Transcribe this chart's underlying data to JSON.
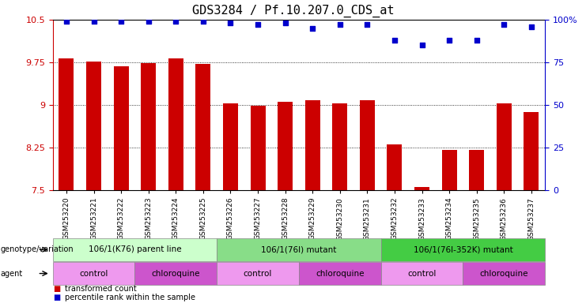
{
  "title": "GDS3284 / Pf.10.207.0_CDS_at",
  "samples": [
    "GSM253220",
    "GSM253221",
    "GSM253222",
    "GSM253223",
    "GSM253224",
    "GSM253225",
    "GSM253226",
    "GSM253227",
    "GSM253228",
    "GSM253229",
    "GSM253230",
    "GSM253231",
    "GSM253232",
    "GSM253233",
    "GSM253234",
    "GSM253235",
    "GSM253236",
    "GSM253237"
  ],
  "bar_values": [
    9.82,
    9.76,
    9.68,
    9.74,
    9.82,
    9.72,
    9.02,
    8.99,
    9.05,
    9.08,
    9.02,
    9.08,
    8.3,
    7.55,
    8.2,
    8.2,
    9.02,
    8.87
  ],
  "percentile_values": [
    99,
    99,
    99,
    99,
    99,
    99,
    98,
    97,
    98,
    95,
    97,
    97,
    88,
    85,
    88,
    88,
    97,
    96
  ],
  "bar_color": "#cc0000",
  "dot_color": "#0000cc",
  "ylim_left": [
    7.5,
    10.5
  ],
  "ylim_right": [
    0,
    100
  ],
  "yticks_left": [
    7.5,
    8.25,
    9.0,
    9.75,
    10.5
  ],
  "yticks_right": [
    0,
    25,
    50,
    75,
    100
  ],
  "ytick_labels_left": [
    "7.5",
    "8.25",
    "9",
    "9.75",
    "10.5"
  ],
  "ytick_labels_right": [
    "0",
    "25",
    "50",
    "75",
    "100%"
  ],
  "genotype_groups": [
    {
      "label": "106/1(K76) parent line",
      "start": 0,
      "end": 6,
      "color": "#ccffcc"
    },
    {
      "label": "106/1(76I) mutant",
      "start": 6,
      "end": 12,
      "color": "#88dd88"
    },
    {
      "label": "106/1(76I-352K) mutant",
      "start": 12,
      "end": 18,
      "color": "#44cc44"
    }
  ],
  "agent_groups": [
    {
      "label": "control",
      "start": 0,
      "end": 3,
      "color": "#ee99ee"
    },
    {
      "label": "chloroquine",
      "start": 3,
      "end": 6,
      "color": "#cc55cc"
    },
    {
      "label": "control",
      "start": 6,
      "end": 9,
      "color": "#ee99ee"
    },
    {
      "label": "chloroquine",
      "start": 9,
      "end": 12,
      "color": "#cc55cc"
    },
    {
      "label": "control",
      "start": 12,
      "end": 15,
      "color": "#ee99ee"
    },
    {
      "label": "chloroquine",
      "start": 15,
      "end": 18,
      "color": "#cc55cc"
    }
  ],
  "legend_items": [
    {
      "label": "transformed count",
      "color": "#cc0000"
    },
    {
      "label": "percentile rank within the sample",
      "color": "#0000cc"
    }
  ],
  "left_axis_color": "#cc0000",
  "right_axis_color": "#0000cc",
  "background_color": "#ffffff",
  "grid_color": "#000000",
  "title_fontsize": 11,
  "tick_fontsize": 8,
  "label_fontsize": 7
}
